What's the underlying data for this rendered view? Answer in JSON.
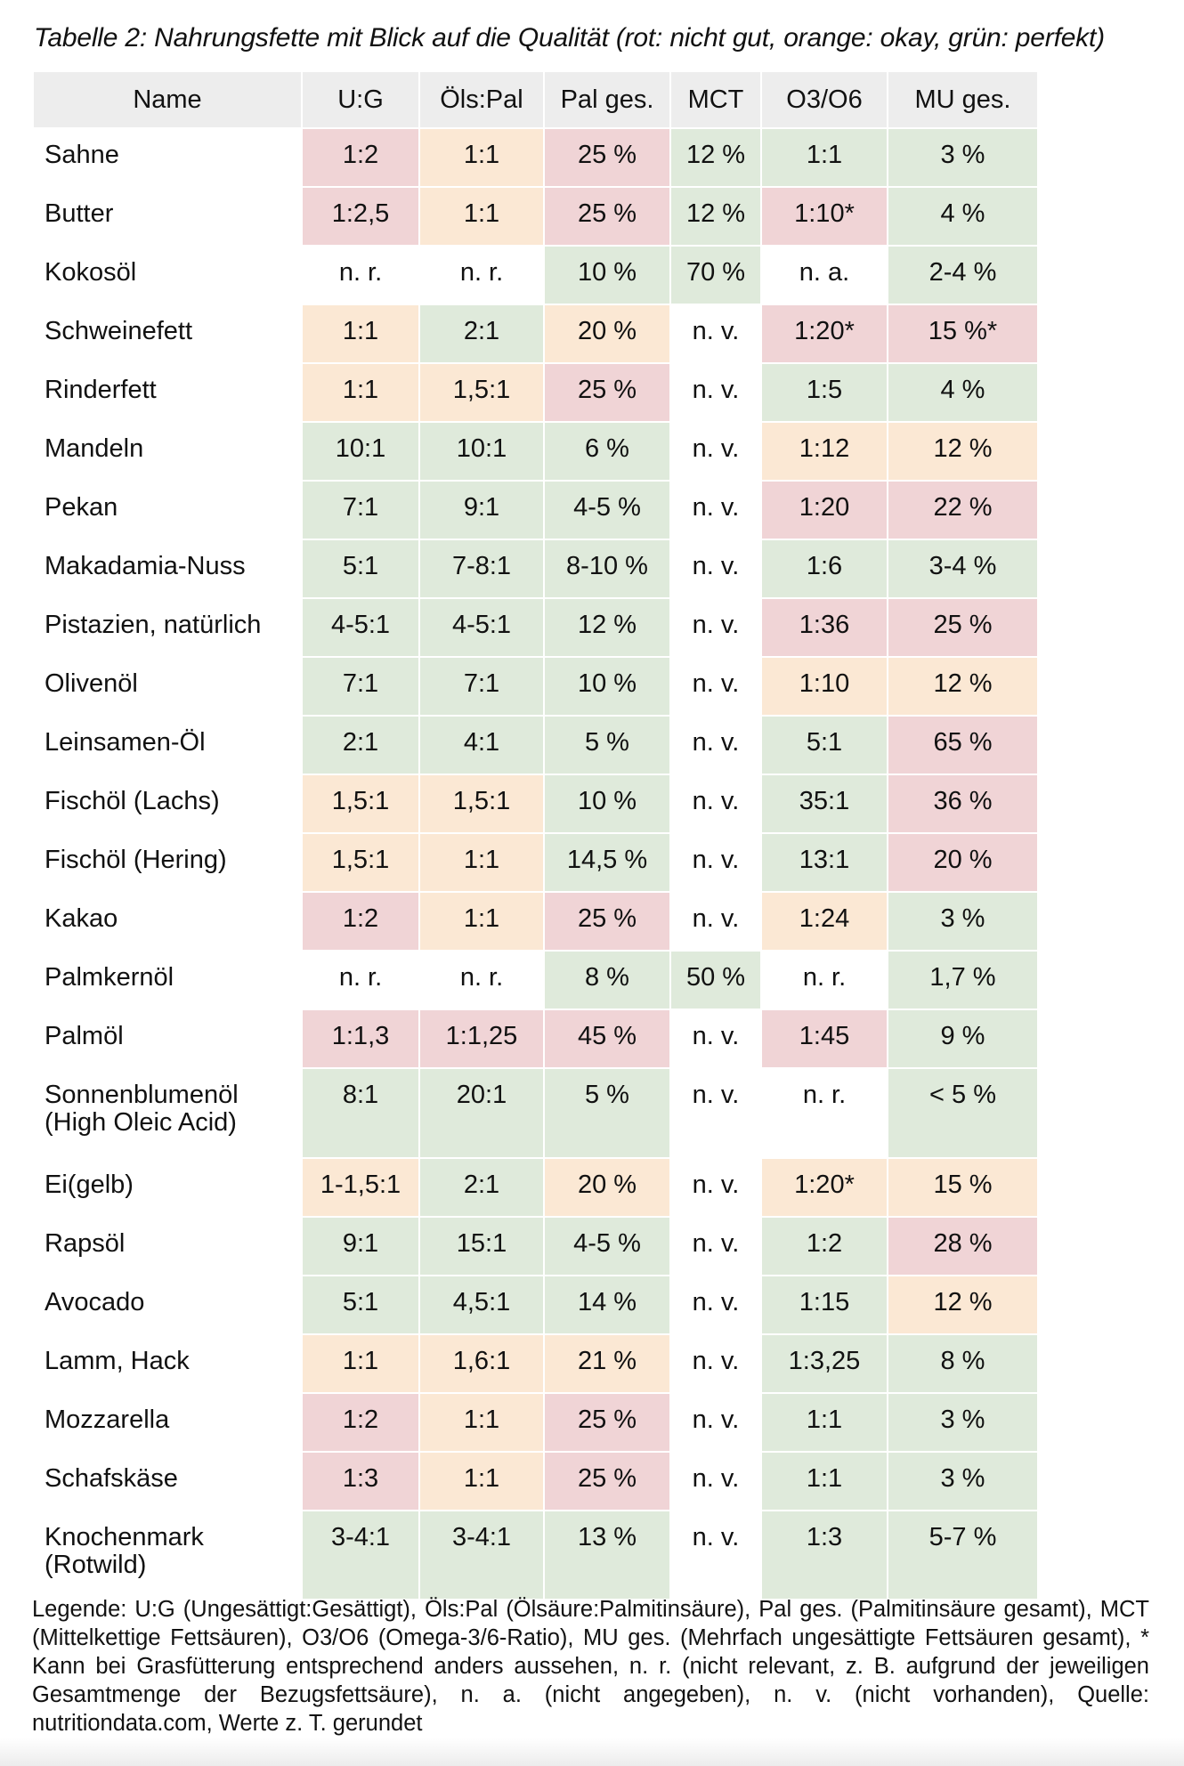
{
  "caption": "Tabelle 2: Nahrungsfette mit Blick auf die Qualität (rot: nicht gut, orange: okay, grün: perfekt)",
  "colors": {
    "red": "#f0d4d6",
    "orange": "#fbe8d4",
    "green": "#dfeadb",
    "header": "#ededed"
  },
  "table": {
    "headers": [
      "Name",
      "U:G",
      "Öls:Pal",
      "Pal ges.",
      "MCT",
      "O3/O6",
      "MU ges."
    ],
    "rows": [
      {
        "name": "Sahne",
        "cells": [
          "1:2",
          "1:1",
          "25 %",
          "12 %",
          "1:1",
          "3 %"
        ]
      },
      {
        "name": "Butter",
        "cells": [
          "1:2,5",
          "1:1",
          "25 %",
          "12 %",
          "1:10*",
          "4 %"
        ]
      },
      {
        "name": "Kokosöl",
        "cells": [
          "n. r.",
          "n. r.",
          "10 %",
          "70 %",
          "n. a.",
          "2-4 %"
        ]
      },
      {
        "name": "Schweinefett",
        "cells": [
          "1:1",
          "2:1",
          "20 %",
          "n. v.",
          "1:20*",
          "15 %*"
        ]
      },
      {
        "name": "Rinderfett",
        "cells": [
          "1:1",
          "1,5:1",
          "25 %",
          "n. v.",
          "1:5",
          "4 %"
        ]
      },
      {
        "name": "Mandeln",
        "cells": [
          "10:1",
          "10:1",
          "6 %",
          "n. v.",
          "1:12",
          "12 %"
        ]
      },
      {
        "name": "Pekan",
        "cells": [
          "7:1",
          "9:1",
          "4-5 %",
          "n. v.",
          "1:20",
          "22 %"
        ]
      },
      {
        "name": "Makadamia-Nuss",
        "cells": [
          "5:1",
          "7-8:1",
          "8-10 %",
          "n. v.",
          "1:6",
          "3-4 %"
        ]
      },
      {
        "name": "Pistazien, natürlich",
        "cells": [
          "4-5:1",
          "4-5:1",
          "12 %",
          "n. v.",
          "1:36",
          "25 %"
        ]
      },
      {
        "name": "Olivenöl",
        "cells": [
          "7:1",
          "7:1",
          "10 %",
          "n. v.",
          "1:10",
          "12 %"
        ]
      },
      {
        "name": "Leinsamen-Öl",
        "cells": [
          "2:1",
          "4:1",
          "5 %",
          "n. v.",
          "5:1",
          "65 %"
        ]
      },
      {
        "name": "Fischöl (Lachs)",
        "cells": [
          "1,5:1",
          "1,5:1",
          "10 %",
          "n. v.",
          "35:1",
          "36 %"
        ]
      },
      {
        "name": "Fischöl (Hering)",
        "cells": [
          "1,5:1",
          "1:1",
          "14,5 %",
          "n. v.",
          "13:1",
          "20 %"
        ]
      },
      {
        "name": "Kakao",
        "cells": [
          "1:2",
          "1:1",
          "25 %",
          "n. v.",
          "1:24",
          "3 %"
        ]
      },
      {
        "name": "Palmkernöl",
        "cells": [
          "n. r.",
          "n. r.",
          "8 %",
          "50 %",
          "n. r.",
          "1,7 %"
        ]
      },
      {
        "name": "Palmöl",
        "cells": [
          "1:1,3",
          "1:1,25",
          "45 %",
          "n. v.",
          "1:45",
          "9 %"
        ]
      },
      {
        "name_line1": "Sonnenblumenöl",
        "name_line2": "(High Oleic Acid)",
        "cells": [
          "8:1",
          "20:1",
          "5 %",
          "n. v.",
          "n. r.",
          "< 5 %"
        ]
      },
      {
        "name": "Ei(gelb)",
        "cells": [
          "1-1,5:1",
          "2:1",
          "20 %",
          "n. v.",
          "1:20*",
          "15 %"
        ]
      },
      {
        "name": "Rapsöl",
        "cells": [
          "9:1",
          "15:1",
          "4-5 %",
          "n. v.",
          "1:2",
          "28 %"
        ]
      },
      {
        "name": "Avocado",
        "cells": [
          "5:1",
          "4,5:1",
          "14 %",
          "n. v.",
          "1:15",
          "12 %"
        ]
      },
      {
        "name": "Lamm, Hack",
        "cells": [
          "1:1",
          "1,6:1",
          "21 %",
          "n. v.",
          "1:3,25",
          "8 %"
        ]
      },
      {
        "name": "Mozzarella",
        "cells": [
          "1:2",
          "1:1",
          "25 %",
          "n. v.",
          "1:1",
          "3 %"
        ]
      },
      {
        "name": "Schafskäse",
        "cells": [
          "1:3",
          "1:1",
          "25 %",
          "n. v.",
          "1:1",
          "3 %"
        ]
      },
      {
        "name_line1": "Knochenmark",
        "name_line2": "(Rotwild)",
        "cells": [
          "3-4:1",
          "3-4:1",
          "13 %",
          "n. v.",
          "1:3",
          "5-7 %"
        ]
      }
    ]
  },
  "legend": "Legende: U:G (Ungesättigt:Gesättigt), Öls:Pal (Ölsäure:Palmitinsäure), Pal ges. (Palmitinsäure gesamt), MCT (Mittelkettige Fettsäuren), O3/O6 (Omega-3/6-Ratio), MU ges. (Mehrfach ungesättigte Fettsäuren gesamt), * Kann bei Grasfütterung entsprechend anders aussehen, n. r. (nicht relevant, z. B. aufgrund der jeweiligen Gesamtmenge der Bezugsfettsäure), n. a. (nicht angegeben), n. v. (nicht vorhanden), Quelle: nutritiondata.com, Werte z. T. gerundet"
}
